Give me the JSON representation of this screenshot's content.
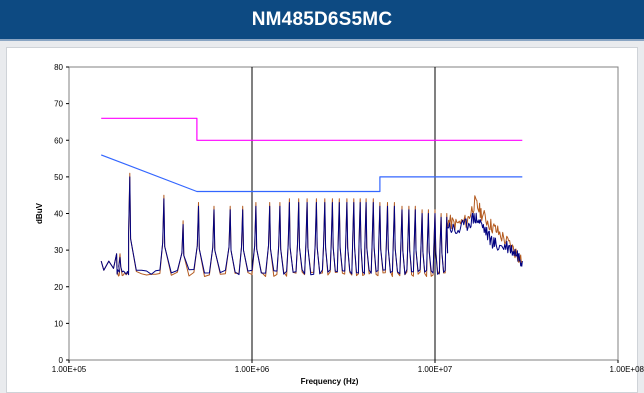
{
  "header": {
    "title": "NM485D6S5MC"
  },
  "colors": {
    "header_bg": "#0d4a82",
    "limit_quasi_peak": "#ff00ff",
    "limit_average": "#3366ff",
    "trace_peak": "#b35a1f",
    "trace_average": "#000080"
  },
  "chart_data": {
    "type": "line",
    "title": "",
    "xlabel": "Frequency (Hz)",
    "ylabel": "dBuV",
    "x_scale": "log",
    "xlim": [
      100000,
      100000000
    ],
    "ylim": [
      0,
      80
    ],
    "x_tick_labels": [
      "1.00E+05",
      "1.00E+06",
      "1.00E+07",
      "1.00E+08"
    ],
    "x_tick_values": [
      100000,
      1000000,
      10000000,
      100000000
    ],
    "y_tick_labels": [
      "0",
      "10",
      "20",
      "30",
      "40",
      "50",
      "60",
      "70",
      "80"
    ],
    "y_tick_values": [
      0,
      10,
      20,
      30,
      40,
      50,
      60,
      70,
      80
    ],
    "grid": "vertical at decades",
    "legend": "none",
    "series": [
      {
        "color": "#ff00ff",
        "x": [
          150000,
          500000,
          500000,
          30000000
        ],
        "y": [
          66,
          66,
          60,
          60
        ]
      },
      {
        "color": "#3366ff",
        "x": [
          150000,
          500000,
          5000000,
          5000000,
          30000000
        ],
        "y": [
          56,
          46,
          46,
          50,
          50
        ]
      },
      {
        "color": "#b35a1f",
        "x_range": [
          150000,
          30000000
        ],
        "peaks_x": [
          190000,
          215000,
          330000,
          420000,
          510000,
          620000,
          760000,
          890000,
          1050000,
          1250000,
          1420000,
          1600000,
          1800000,
          2000000,
          2250000,
          2500000,
          2750000,
          3000000,
          3300000,
          3600000,
          3900000,
          4200000,
          4600000,
          5000000,
          5500000,
          6000000,
          6600000,
          7200000,
          7800000,
          8500000,
          9200000,
          10000000,
          10800000,
          11600000
        ],
        "peaks_y": [
          29,
          51,
          45,
          38,
          43,
          42,
          42,
          42,
          43,
          43,
          43,
          44,
          44,
          44,
          44,
          44,
          44,
          44,
          44,
          44,
          44,
          44,
          44,
          43,
          43,
          43,
          42,
          42,
          42,
          41,
          41,
          41,
          40,
          40
        ],
        "floor_y": 23.5,
        "tail_x": [
          11600000,
          13000000,
          15000000,
          16500000,
          18000000,
          20000000,
          22000000,
          25000000,
          28000000,
          30000000
        ],
        "tail_y": [
          38,
          37,
          38,
          43,
          40,
          37,
          35,
          32,
          29,
          27
        ]
      },
      {
        "color": "#000080",
        "x_range": [
          150000,
          30000000
        ],
        "peaks_x": [
          190000,
          215000,
          330000,
          420000,
          510000,
          620000,
          760000,
          890000,
          1050000,
          1250000,
          1420000,
          1600000,
          1800000,
          2000000,
          2250000,
          2500000,
          2750000,
          3000000,
          3300000,
          3600000,
          3900000,
          4200000,
          4600000,
          5000000,
          5500000,
          6000000,
          6600000,
          7200000,
          7800000,
          8500000,
          9200000,
          10000000,
          10800000,
          11600000
        ],
        "peaks_y": [
          28,
          50,
          44,
          37,
          42,
          41,
          41,
          41,
          42,
          42,
          42,
          43,
          43,
          43,
          43,
          43,
          43,
          43,
          43,
          43,
          43,
          43,
          43,
          42,
          42,
          42,
          41,
          41,
          41,
          40,
          40,
          40,
          39,
          39
        ],
        "floor_y": 24,
        "tail_x": [
          11600000,
          13000000,
          15000000,
          16500000,
          18000000,
          20000000,
          22000000,
          25000000,
          28000000,
          30000000
        ],
        "tail_y": [
          37,
          35,
          37,
          39,
          37,
          33,
          31,
          31,
          29,
          27
        ]
      }
    ]
  }
}
